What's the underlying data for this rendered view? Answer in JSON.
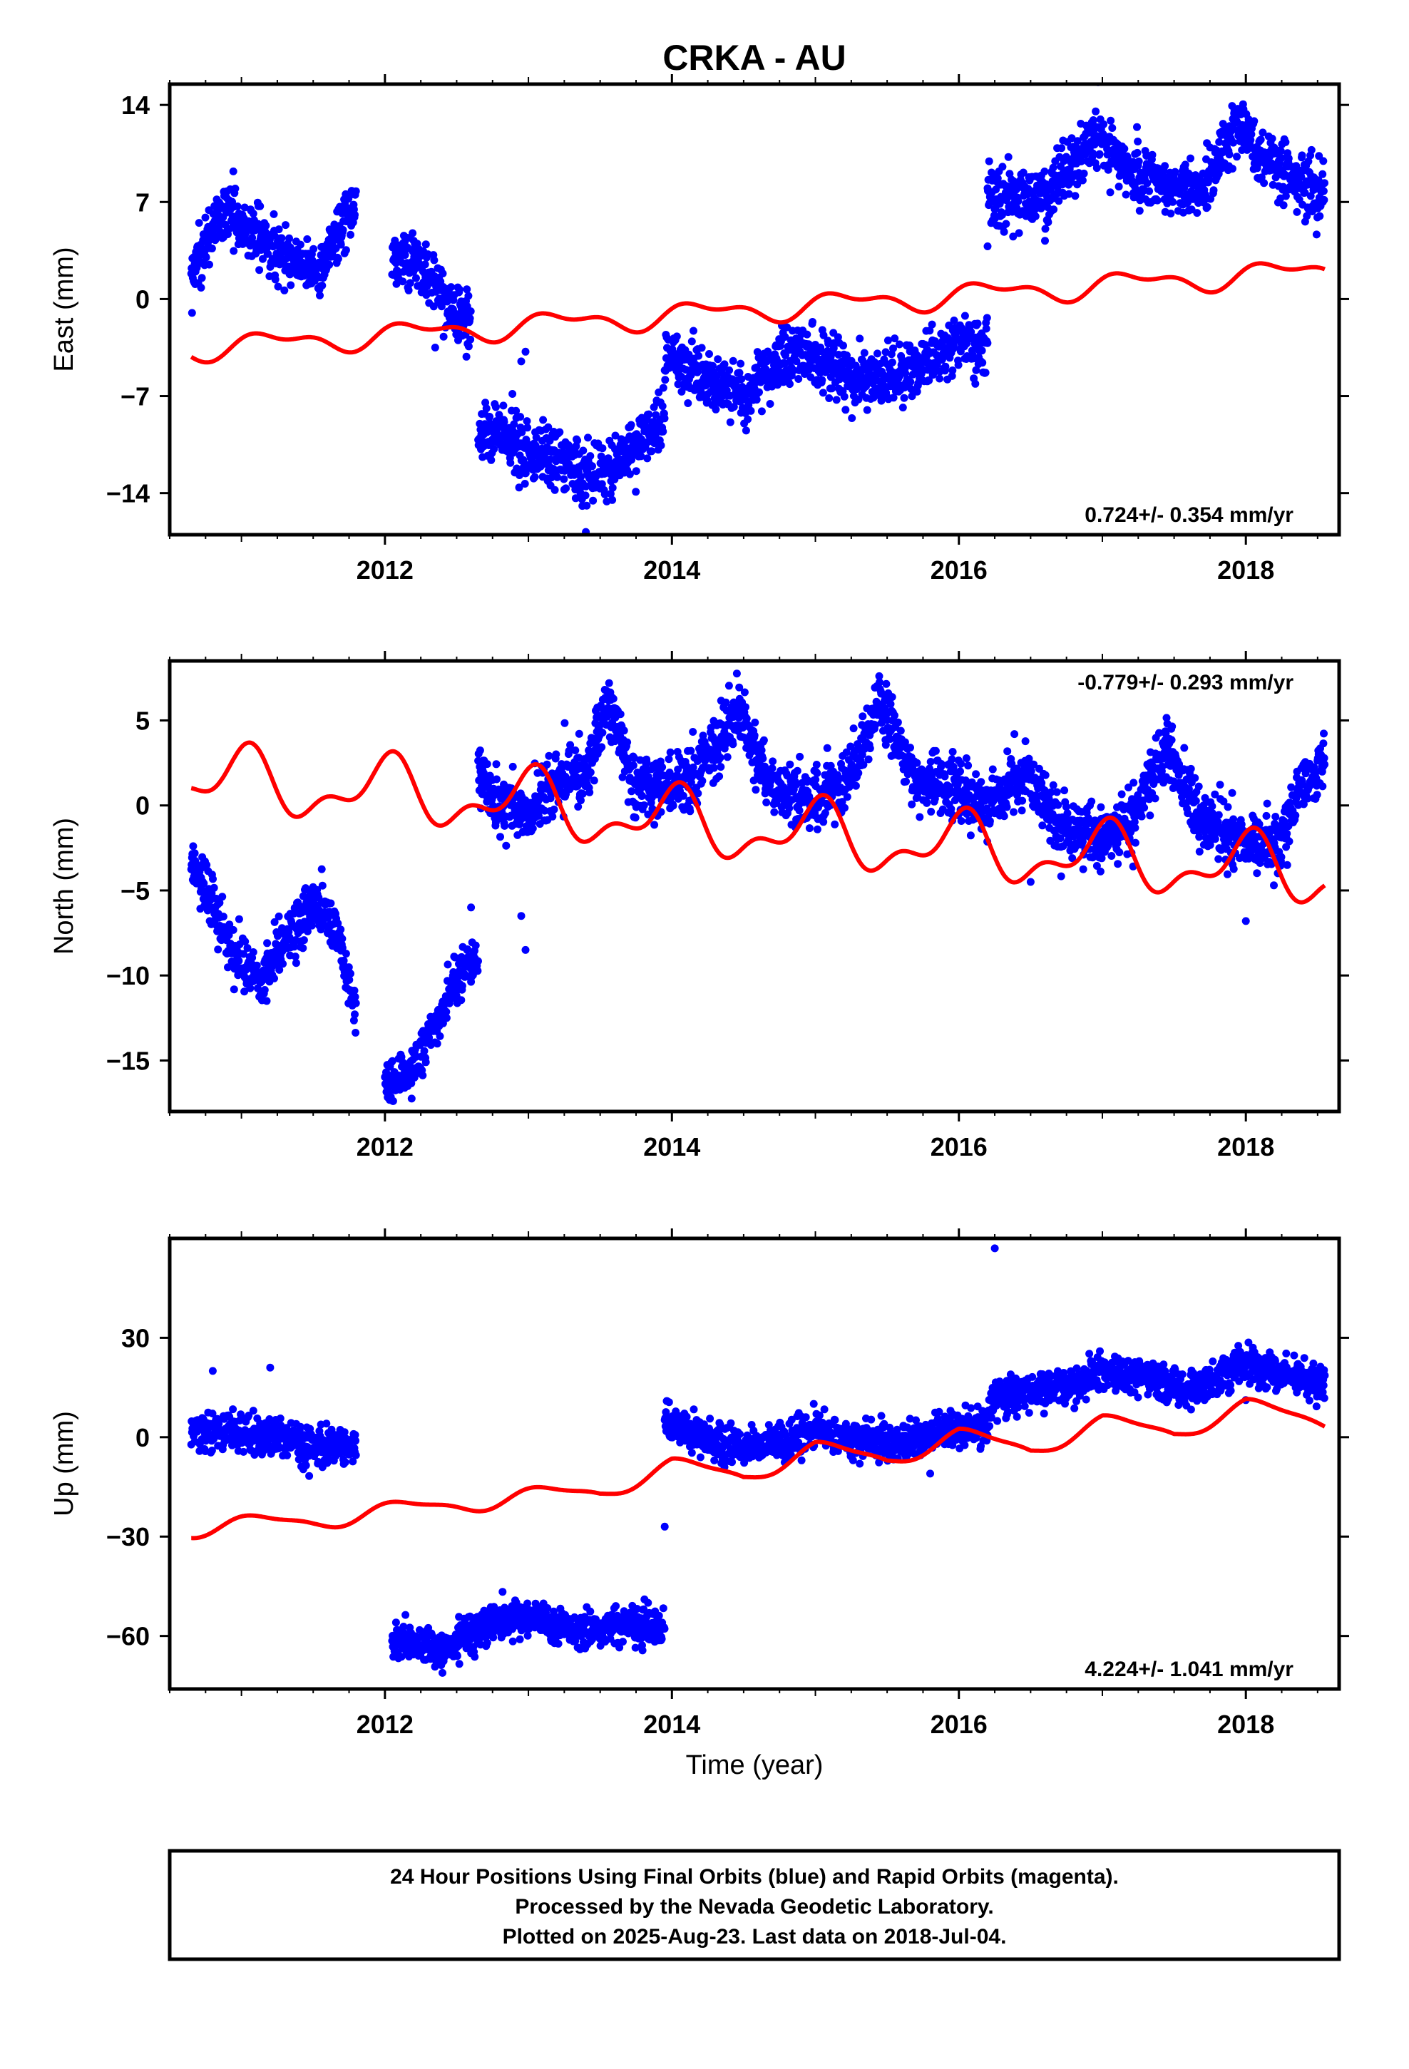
{
  "title": "CRKA - AU",
  "xlabel": "Time (year)",
  "caption": {
    "line1": "24 Hour Positions Using Final Orbits (blue) and Rapid Orbits (magenta).",
    "line2": "Processed by the Nevada Geodetic Laboratory.",
    "line3": "Plotted on 2025-Aug-23. Last data on 2018-Jul-04."
  },
  "colors": {
    "final_orbits": "#0000ff",
    "model": "#ff0000",
    "frame": "#000000"
  },
  "chart_data": [
    {
      "type": "scatter",
      "ylabel": "East (mm)",
      "rate": "0.724+/- 0.354 mm/yr",
      "xlim": [
        2010.5,
        2018.65
      ],
      "ylim": [
        -17,
        15.5
      ],
      "x_ticks": [
        2012,
        2014,
        2016,
        2018
      ],
      "x_tick_labels": [
        "2012",
        "2014",
        "2016",
        "2018"
      ],
      "y_ticks": [
        14,
        7,
        0,
        -7,
        -14
      ],
      "y_tick_labels": [
        "14",
        "7",
        "0",
        "−7",
        "−14"
      ],
      "rate_position": "bottom-right",
      "series": [
        {
          "style": "points",
          "segments": [
            {
              "from": 2010.65,
              "to": 2011.8,
              "anchors": [
                [
                  2010.65,
                  1.5
                ],
                [
                  2010.8,
                  5.0
                ],
                [
                  2010.9,
                  6.5
                ],
                [
                  2011.05,
                  5.0
                ],
                [
                  2011.2,
                  4.0
                ],
                [
                  2011.4,
                  2.5
                ],
                [
                  2011.55,
                  2.0
                ],
                [
                  2011.7,
                  5.5
                ],
                [
                  2011.8,
                  7.0
                ]
              ],
              "spread": 1.3
            },
            {
              "from": 2012.05,
              "to": 2012.6,
              "anchors": [
                [
                  2012.05,
                  3.0
                ],
                [
                  2012.2,
                  3.0
                ],
                [
                  2012.35,
                  1.0
                ],
                [
                  2012.45,
                  -1.0
                ],
                [
                  2012.6,
                  -1.5
                ]
              ],
              "spread": 1.3
            },
            {
              "from": 2012.65,
              "to": 2013.95,
              "anchors": [
                [
                  2012.65,
                  -10.0
                ],
                [
                  2012.8,
                  -9.5
                ],
                [
                  2013.0,
                  -11.0
                ],
                [
                  2013.2,
                  -11.5
                ],
                [
                  2013.4,
                  -12.5
                ],
                [
                  2013.6,
                  -12.0
                ],
                [
                  2013.8,
                  -10.0
                ],
                [
                  2013.95,
                  -9.0
                ]
              ],
              "spread": 1.3
            },
            {
              "from": 2013.95,
              "to": 2016.2,
              "anchors": [
                [
                  2013.95,
                  -4.0
                ],
                [
                  2014.2,
                  -5.5
                ],
                [
                  2014.5,
                  -7.0
                ],
                [
                  2014.75,
                  -4.5
                ],
                [
                  2015.0,
                  -4.0
                ],
                [
                  2015.25,
                  -5.5
                ],
                [
                  2015.5,
                  -6.0
                ],
                [
                  2015.75,
                  -4.5
                ],
                [
                  2016.0,
                  -3.0
                ],
                [
                  2016.2,
                  -3.5
                ]
              ],
              "spread": 1.3
            },
            {
              "from": 2016.2,
              "to": 2018.55,
              "anchors": [
                [
                  2016.2,
                  7.5
                ],
                [
                  2016.5,
                  7.0
                ],
                [
                  2016.75,
                  9.0
                ],
                [
                  2016.95,
                  12.0
                ],
                [
                  2017.2,
                  9.0
                ],
                [
                  2017.5,
                  8.0
                ],
                [
                  2017.7,
                  8.0
                ],
                [
                  2017.95,
                  12.5
                ],
                [
                  2018.2,
                  9.5
                ],
                [
                  2018.55,
                  7.5
                ]
              ],
              "spread": 1.3
            }
          ],
          "outliers": [
            [
              2012.95,
              -4.5
            ],
            [
              2012.98,
              -3.8
            ],
            [
              2013.4,
              -16.8
            ],
            [
              2016.2,
              3.8
            ],
            [
              2012.35,
              -3.5
            ],
            [
              2016.6,
              4.2
            ]
          ]
        },
        {
          "style": "line",
          "anchors": [
            [
              2010.65,
              -3.6
            ],
            [
              2018.55,
              2.1
            ]
          ],
          "amp1": 0.7,
          "amp2": 0.4,
          "phase1": 0.2,
          "phase2": 1.1
        }
      ]
    },
    {
      "type": "scatter",
      "ylabel": "North (mm)",
      "rate": "-0.779+/- 0.293 mm/yr",
      "xlim": [
        2010.5,
        2018.65
      ],
      "ylim": [
        -18,
        8.5
      ],
      "x_ticks": [
        2012,
        2014,
        2016,
        2018
      ],
      "x_tick_labels": [
        "2012",
        "2014",
        "2016",
        "2018"
      ],
      "y_ticks": [
        5,
        0,
        -5,
        -10,
        -15
      ],
      "y_tick_labels": [
        "5",
        "0",
        "−5",
        "−10",
        "−15"
      ],
      "rate_position": "top-right",
      "series": [
        {
          "style": "points",
          "segments": [
            {
              "from": 2010.65,
              "to": 2011.8,
              "anchors": [
                [
                  2010.65,
                  -3.5
                ],
                [
                  2010.8,
                  -5.5
                ],
                [
                  2010.95,
                  -9.0
                ],
                [
                  2011.1,
                  -10.0
                ],
                [
                  2011.3,
                  -8.0
                ],
                [
                  2011.5,
                  -6.0
                ],
                [
                  2011.65,
                  -7.0
                ],
                [
                  2011.8,
                  -12.0
                ]
              ],
              "spread": 1.0
            },
            {
              "from": 2012.0,
              "to": 2012.65,
              "anchors": [
                [
                  2012.0,
                  -16.5
                ],
                [
                  2012.2,
                  -15.5
                ],
                [
                  2012.4,
                  -12.0
                ],
                [
                  2012.55,
                  -9.5
                ],
                [
                  2012.65,
                  -9.0
                ]
              ],
              "spread": 0.9
            },
            {
              "from": 2012.65,
              "to": 2018.55,
              "anchors": [
                [
                  2012.65,
                  2.0
                ],
                [
                  2012.8,
                  0.0
                ],
                [
                  2013.0,
                  -0.5
                ],
                [
                  2013.2,
                  1.5
                ],
                [
                  2013.4,
                  2.0
                ],
                [
                  2013.55,
                  6.0
                ],
                [
                  2013.75,
                  1.0
                ],
                [
                  2014.0,
                  1.0
                ],
                [
                  2014.2,
                  2.0
                ],
                [
                  2014.45,
                  5.5
                ],
                [
                  2014.7,
                  1.0
                ],
                [
                  2014.95,
                  0.5
                ],
                [
                  2015.2,
                  1.0
                ],
                [
                  2015.45,
                  6.0
                ],
                [
                  2015.7,
                  1.5
                ],
                [
                  2016.0,
                  1.0
                ],
                [
                  2016.2,
                  0.0
                ],
                [
                  2016.45,
                  2.0
                ],
                [
                  2016.7,
                  -1.0
                ],
                [
                  2016.95,
                  -2.0
                ],
                [
                  2017.2,
                  -1.0
                ],
                [
                  2017.45,
                  3.5
                ],
                [
                  2017.7,
                  -1.0
                ],
                [
                  2017.95,
                  -2.0
                ],
                [
                  2018.2,
                  -2.5
                ],
                [
                  2018.4,
                  1.0
                ],
                [
                  2018.55,
                  2.5
                ]
              ],
              "spread": 1.1
            }
          ],
          "outliers": [
            [
              2012.95,
              -6.5
            ],
            [
              2012.98,
              -8.5
            ],
            [
              2012.6,
              -6.0
            ],
            [
              2018.0,
              -6.8
            ],
            [
              2016.5,
              -4.5
            ]
          ]
        },
        {
          "style": "line",
          "anchors": [
            [
              2010.65,
              1.5
            ],
            [
              2012.6,
              0.5
            ],
            [
              2014.0,
              -1.0
            ],
            [
              2016.0,
              -2.5
            ],
            [
              2018.55,
              -4.0
            ]
          ],
          "amp1": 1.6,
          "amp2": 0.9,
          "phase1": 1.5,
          "phase2": 0.6
        }
      ]
    },
    {
      "type": "scatter",
      "ylabel": "Up (mm)",
      "rate": "4.224+/- 1.041 mm/yr",
      "xlim": [
        2010.5,
        2018.65
      ],
      "ylim": [
        -76,
        60
      ],
      "x_ticks": [
        2012,
        2014,
        2016,
        2018
      ],
      "x_tick_labels": [
        "2012",
        "2014",
        "2016",
        "2018"
      ],
      "y_ticks": [
        30,
        0,
        -30,
        -60
      ],
      "y_tick_labels": [
        "30",
        "0",
        "−30",
        "−60"
      ],
      "rate_position": "bottom-right",
      "series": [
        {
          "style": "points",
          "segments": [
            {
              "from": 2010.65,
              "to": 2011.8,
              "anchors": [
                [
                  2010.65,
                  2.0
                ],
                [
                  2011.0,
                  1.0
                ],
                [
                  2011.3,
                  -1.0
                ],
                [
                  2011.6,
                  -3.0
                ],
                [
                  2011.8,
                  -2.0
                ]
              ],
              "spread": 3.5
            },
            {
              "from": 2012.05,
              "to": 2013.95,
              "anchors": [
                [
                  2012.05,
                  -61.0
                ],
                [
                  2012.4,
                  -64.0
                ],
                [
                  2012.7,
                  -57.0
                ],
                [
                  2013.0,
                  -54.0
                ],
                [
                  2013.3,
                  -58.0
                ],
                [
                  2013.6,
                  -57.0
                ],
                [
                  2013.95,
                  -57.0
                ]
              ],
              "spread": 3.5
            },
            {
              "from": 2013.95,
              "to": 2018.55,
              "anchors": [
                [
                  2013.95,
                  4.0
                ],
                [
                  2014.3,
                  -2.0
                ],
                [
                  2014.6,
                  -3.0
                ],
                [
                  2015.0,
                  2.0
                ],
                [
                  2015.3,
                  -1.0
                ],
                [
                  2015.6,
                  -2.0
                ],
                [
                  2015.9,
                  2.0
                ],
                [
                  2016.2,
                  4.0
                ],
                [
                  2016.25,
                  13.0
                ],
                [
                  2016.6,
                  14.0
                ],
                [
                  2017.0,
                  20.0
                ],
                [
                  2017.3,
                  18.0
                ],
                [
                  2017.6,
                  14.0
                ],
                [
                  2018.0,
                  22.0
                ],
                [
                  2018.3,
                  19.0
                ],
                [
                  2018.55,
                  16.0
                ]
              ],
              "spread": 3.5
            }
          ],
          "outliers": [
            [
              2016.25,
              57.0
            ],
            [
              2013.95,
              -27.0
            ],
            [
              2010.8,
              20.0
            ],
            [
              2011.2,
              21.0
            ],
            [
              2015.8,
              -11.0
            ]
          ]
        },
        {
          "style": "line",
          "anchors": [
            [
              2010.65,
              -27.5
            ],
            [
              2011.5,
              -25.0
            ],
            [
              2012.5,
              -20.0
            ],
            [
              2013.5,
              -16.0
            ],
            [
              2014.0,
              -9.0
            ],
            [
              2014.5,
              -11.0
            ],
            [
              2015.0,
              -4.0
            ],
            [
              2015.5,
              -6.0
            ],
            [
              2016.0,
              0.0
            ],
            [
              2016.5,
              -3.0
            ],
            [
              2017.0,
              4.0
            ],
            [
              2017.5,
              2.0
            ],
            [
              2018.0,
              9.0
            ],
            [
              2018.55,
              5.0
            ]
          ],
          "amp1": 2.5,
          "amp2": 0.8,
          "phase1": 0.8,
          "phase2": 1.9
        }
      ]
    }
  ]
}
